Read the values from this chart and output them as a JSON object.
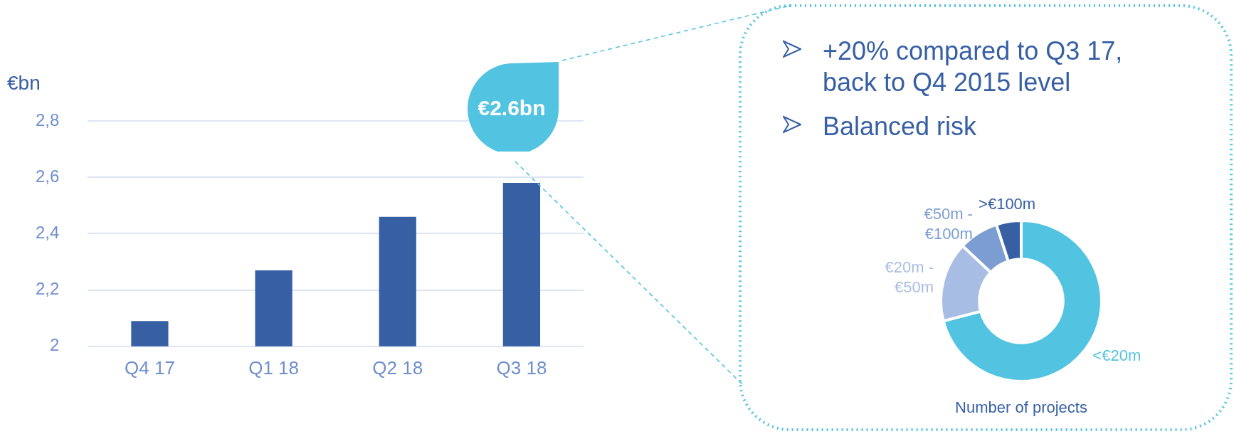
{
  "chart_data": [
    {
      "type": "bar",
      "ylabel": "€bn",
      "categories": [
        "Q4 17",
        "Q1 18",
        "Q2 18",
        "Q3 18"
      ],
      "values": [
        2.09,
        2.27,
        2.46,
        2.58
      ],
      "color": "#3760a4",
      "ylim": [
        2,
        2.8
      ],
      "yticks": [
        2,
        {
          "value": 2.2,
          "label": "2,2"
        },
        {
          "value": 2.4,
          "label": "2,4"
        },
        {
          "value": 2.6,
          "label": "2,6"
        },
        {
          "value": 2.8,
          "label": "2,8"
        }
      ],
      "grid": "y",
      "legend": false,
      "annotations": [
        "€2.6bn"
      ]
    },
    {
      "type": "donut",
      "title": "Number of projects",
      "categories": [
        "<€20m",
        "€20m - €50m",
        "€50m - €100m",
        ">€100m"
      ],
      "values": [
        71,
        16,
        8,
        5
      ],
      "colors": [
        "#52c3e0",
        "#a8bde3",
        "#7b9dd1",
        "#3760a4"
      ],
      "legend": false,
      "annotations": [
        "+20% compared to Q3 17, back to Q4 2015 level",
        "Balanced risk"
      ]
    }
  ]
}
